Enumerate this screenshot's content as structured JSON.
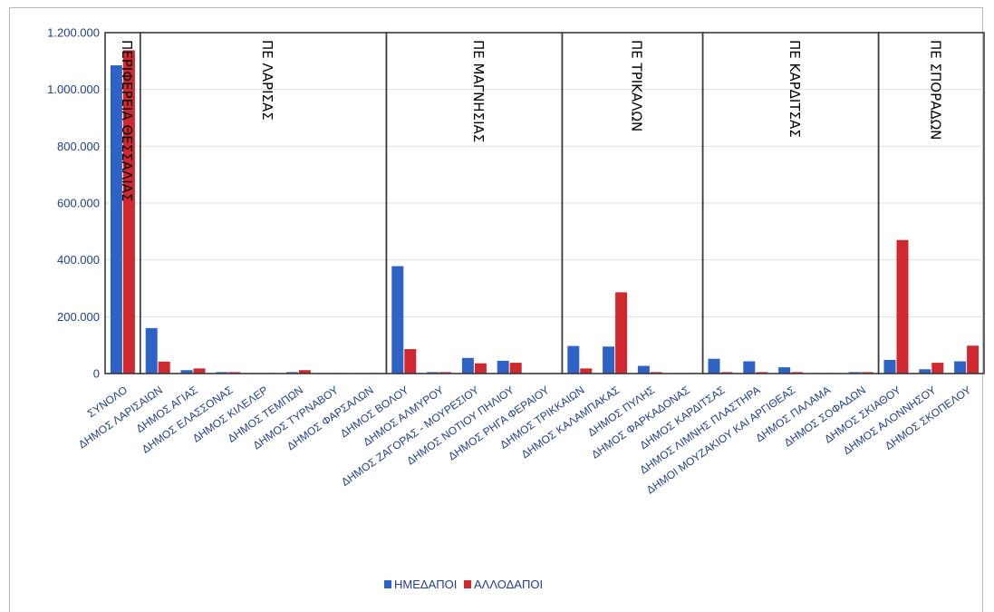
{
  "chart_data": {
    "type": "bar",
    "yticks": [
      "0",
      "200.000",
      "400.000",
      "600.000",
      "800.000",
      "1.000.000",
      "1.200.000"
    ],
    "ylim": [
      0,
      1200000
    ],
    "grid": true,
    "legend_position": "bottom",
    "categories": [
      "ΣΥΝΟΛΟ",
      "ΔΗΜΟΣ ΛΑΡΙΣΑΙΩΝ",
      "ΔΗΜΟΣ ΑΓΙΑΣ",
      "ΔΗΜΟΣ ΕΛΑΣΣΟΝΑΣ",
      "ΔΗΜΟΣ ΚΙΛΕΛΕΡ",
      "ΔΗΜΟΣ ΤΕΜΠΩΝ",
      "ΔΗΜΟΣ ΤΥΡΝΑΒΟΥ",
      "ΔΗΜΟΣ ΦΑΡΣΑΛΩΝ",
      "ΔΗΜΟΣ ΒΟΛΟΥ",
      "ΔΗΜΟΣ ΑΛΜΥΡΟΥ",
      "ΔΗΜΟΣ ΖΑΓΟΡΑΣ - ΜΟΥΡΕΣΙΟΥ",
      "ΔΗΜΟΣ ΝΟΤΙΟΥ ΠΗΛΙΟΥ",
      "ΔΗΜΟΣ ΡΗΓΑ ΦΕΡΑΙΟΥ",
      "ΔΗΜΟΣ ΤΡΙΚΚΑΙΩΝ",
      "ΔΗΜΟΣ ΚΑΛΑΜΠΑΚΑΣ",
      "ΔΗΜΟΣ ΠΥΛΗΣ",
      "ΔΗΜΟΣ ΦΑΡΚΑΔΟΝΑΣ",
      "ΔΗΜΟΣ ΚΑΡΔΙΤΣΑΣ",
      "ΔΗΜΟΣ ΛΙΜΝΗΣ ΠΛΑΣΤΗΡΑ",
      "ΔΗΜΟΙ ΜΟΥΖΑΚΙΟΥ ΚΑΙ ΑΡΓΙΘΕΑΣ",
      "ΔΗΜΟΣ ΠΑΛΑΜΑ",
      "ΔΗΜΟΣ ΣΟΦΑΔΩΝ",
      "ΔΗΜΟΣ ΣΚΙΑΘΟΥ",
      "ΔΗΜΟΣ ΑΛΟΝΝΗΣΟΥ",
      "ΔΗΜΟΣ ΣΚΟΠΕΛΟΥ"
    ],
    "series": [
      {
        "name": "ΗΜΕΔΑΠΟΙ",
        "color": "#2e62c5",
        "values": [
          1085000,
          160000,
          12000,
          5000,
          2000,
          5000,
          2000,
          2000,
          378000,
          5000,
          55000,
          45000,
          2000,
          97000,
          95000,
          27000,
          2000,
          52000,
          43000,
          22000,
          2000,
          5000,
          48000,
          15000,
          43000
        ]
      },
      {
        "name": "ΑΛΛΟΔΑΠΟΙ",
        "color": "#d0282f",
        "values": [
          1138000,
          42000,
          18000,
          5000,
          2000,
          12000,
          2000,
          2000,
          86000,
          5000,
          36000,
          38000,
          2000,
          18000,
          286000,
          5000,
          2000,
          5000,
          5000,
          5000,
          2000,
          5000,
          470000,
          38000,
          98000
        ]
      }
    ],
    "groups": [
      {
        "label": "ΠΕΡΙΦΕΡΕΙΑ ΘΕΣΣΑΛΙΑΣ",
        "start": 0,
        "end": 0
      },
      {
        "label": "ΠΕ ΛΑΡΙΣΑΣ",
        "start": 1,
        "end": 7
      },
      {
        "label": "ΠΕ ΜΑΓΝΗΣΙΑΣ",
        "start": 8,
        "end": 12
      },
      {
        "label": "ΠΕ ΤΡΙΚΑΛΩΝ",
        "start": 13,
        "end": 16
      },
      {
        "label": "ΠΕ ΚΑΡΔΙΤΣΑΣ",
        "start": 17,
        "end": 21
      },
      {
        "label": "ΠΕ ΣΠΟΡΑΔΩΝ",
        "start": 22,
        "end": 24
      }
    ]
  }
}
